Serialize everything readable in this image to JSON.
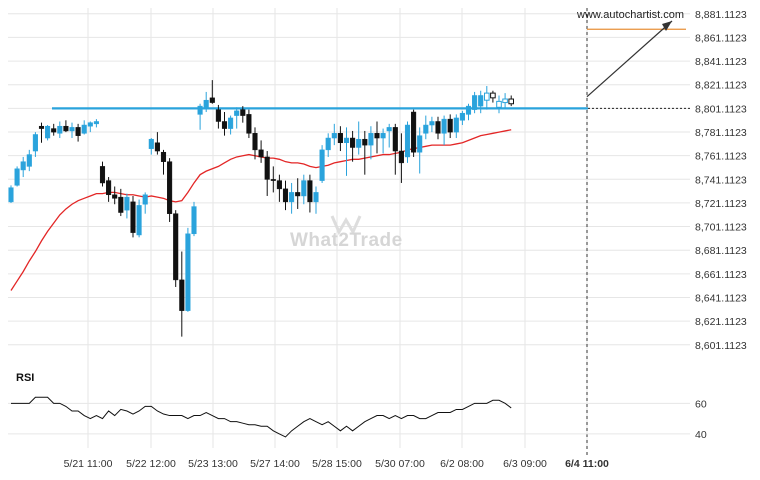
{
  "watermark_text": "What2Trade",
  "source_label": "www.autochartist.com",
  "rsi_label": "RSI",
  "colors": {
    "bull": "#2aa3dc",
    "bear": "#111111",
    "ma": "#e32626",
    "support": "#2aa3dc",
    "grid": "#e6e6e6",
    "projection": "#e8913a",
    "rsi_line": "#111111"
  },
  "chart_data": {
    "type": "candlestick",
    "title": "",
    "y_axis": {
      "ticks": [
        "8,881.1123",
        "8,861.1123",
        "8,841.1123",
        "8,821.1123",
        "8,801.1123",
        "8,781.1123",
        "8,761.1123",
        "8,741.1123",
        "8,721.1123",
        "8,701.1123",
        "8,681.1123",
        "8,661.1123",
        "8,641.1123",
        "8,621.1123",
        "8,601.1123"
      ],
      "range": [
        8595,
        8886
      ],
      "grid": true
    },
    "x_axis": {
      "labels": [
        "5/21 11:00",
        "5/22 12:00",
        "5/23 13:00",
        "5/27 14:00",
        "5/28 15:00",
        "5/30 07:00",
        "6/2 08:00",
        "6/3 09:00",
        "6/4 11:00"
      ]
    },
    "support_level": 8801.1123,
    "breakout_marker": "6/4 11:00",
    "projection": {
      "from_price": 8811,
      "to_price": 8868
    },
    "candles": [
      {
        "o": 8722,
        "h": 8736,
        "l": 8721,
        "c": 8734
      },
      {
        "o": 8736,
        "h": 8752,
        "l": 8735,
        "c": 8750
      },
      {
        "o": 8749,
        "h": 8760,
        "l": 8743,
        "c": 8756
      },
      {
        "o": 8752,
        "h": 8766,
        "l": 8748,
        "c": 8762
      },
      {
        "o": 8765,
        "h": 8781,
        "l": 8760,
        "c": 8779
      },
      {
        "o": 8786,
        "h": 8789,
        "l": 8772,
        "c": 8784
      },
      {
        "o": 8776,
        "h": 8787,
        "l": 8774,
        "c": 8786
      },
      {
        "o": 8784,
        "h": 8788,
        "l": 8778,
        "c": 8781
      },
      {
        "o": 8780,
        "h": 8790,
        "l": 8776,
        "c": 8786
      },
      {
        "o": 8786,
        "h": 8791,
        "l": 8781,
        "c": 8782
      },
      {
        "o": 8782,
        "h": 8789,
        "l": 8776,
        "c": 8785
      },
      {
        "o": 8785,
        "h": 8788,
        "l": 8773,
        "c": 8778
      },
      {
        "o": 8780,
        "h": 8791,
        "l": 8779,
        "c": 8787
      },
      {
        "o": 8786,
        "h": 8790,
        "l": 8781,
        "c": 8789
      },
      {
        "o": 8788,
        "h": 8792,
        "l": 8785,
        "c": 8790
      },
      {
        "o": 8752,
        "h": 8756,
        "l": 8735,
        "c": 8738
      },
      {
        "o": 8740,
        "h": 8743,
        "l": 8722,
        "c": 8728
      },
      {
        "o": 8728,
        "h": 8735,
        "l": 8720,
        "c": 8725
      },
      {
        "o": 8726,
        "h": 8733,
        "l": 8710,
        "c": 8713
      },
      {
        "o": 8715,
        "h": 8729,
        "l": 8708,
        "c": 8726
      },
      {
        "o": 8722,
        "h": 8727,
        "l": 8692,
        "c": 8696
      },
      {
        "o": 8694,
        "h": 8724,
        "l": 8692,
        "c": 8719
      },
      {
        "o": 8720,
        "h": 8730,
        "l": 8712,
        "c": 8728
      },
      {
        "o": 8767,
        "h": 8776,
        "l": 8762,
        "c": 8775
      },
      {
        "o": 8772,
        "h": 8781,
        "l": 8762,
        "c": 8765
      },
      {
        "o": 8764,
        "h": 8766,
        "l": 8745,
        "c": 8756
      },
      {
        "o": 8756,
        "h": 8759,
        "l": 8705,
        "c": 8712
      },
      {
        "o": 8712,
        "h": 8715,
        "l": 8650,
        "c": 8656
      },
      {
        "o": 8656,
        "h": 8680,
        "l": 8608,
        "c": 8630
      },
      {
        "o": 8630,
        "h": 8700,
        "l": 8629,
        "c": 8695
      },
      {
        "o": 8695,
        "h": 8722,
        "l": 8693,
        "c": 8718
      },
      {
        "o": 8796,
        "h": 8805,
        "l": 8783,
        "c": 8803
      },
      {
        "o": 8802,
        "h": 8815,
        "l": 8798,
        "c": 8808
      },
      {
        "o": 8810,
        "h": 8825,
        "l": 8805,
        "c": 8806
      },
      {
        "o": 8800,
        "h": 8804,
        "l": 8784,
        "c": 8790
      },
      {
        "o": 8790,
        "h": 8798,
        "l": 8778,
        "c": 8784
      },
      {
        "o": 8784,
        "h": 8795,
        "l": 8779,
        "c": 8793
      },
      {
        "o": 8795,
        "h": 8802,
        "l": 8784,
        "c": 8799
      },
      {
        "o": 8800,
        "h": 8803,
        "l": 8789,
        "c": 8795
      },
      {
        "o": 8796,
        "h": 8800,
        "l": 8776,
        "c": 8780
      },
      {
        "o": 8780,
        "h": 8785,
        "l": 8758,
        "c": 8766
      },
      {
        "o": 8766,
        "h": 8774,
        "l": 8755,
        "c": 8760
      },
      {
        "o": 8760,
        "h": 8765,
        "l": 8727,
        "c": 8741
      },
      {
        "o": 8741,
        "h": 8752,
        "l": 8730,
        "c": 8740
      },
      {
        "o": 8740,
        "h": 8745,
        "l": 8722,
        "c": 8733
      },
      {
        "o": 8733,
        "h": 8740,
        "l": 8715,
        "c": 8722
      },
      {
        "o": 8722,
        "h": 8738,
        "l": 8712,
        "c": 8730
      },
      {
        "o": 8730,
        "h": 8742,
        "l": 8716,
        "c": 8727
      },
      {
        "o": 8727,
        "h": 8745,
        "l": 8720,
        "c": 8740
      },
      {
        "o": 8740,
        "h": 8745,
        "l": 8713,
        "c": 8722
      },
      {
        "o": 8722,
        "h": 8735,
        "l": 8712,
        "c": 8730
      },
      {
        "o": 8740,
        "h": 8770,
        "l": 8738,
        "c": 8766
      },
      {
        "o": 8766,
        "h": 8780,
        "l": 8760,
        "c": 8776
      },
      {
        "o": 8776,
        "h": 8788,
        "l": 8770,
        "c": 8780
      },
      {
        "o": 8780,
        "h": 8786,
        "l": 8765,
        "c": 8772
      },
      {
        "o": 8772,
        "h": 8785,
        "l": 8744,
        "c": 8776
      },
      {
        "o": 8776,
        "h": 8782,
        "l": 8756,
        "c": 8768
      },
      {
        "o": 8768,
        "h": 8790,
        "l": 8762,
        "c": 8775
      },
      {
        "o": 8775,
        "h": 8782,
        "l": 8745,
        "c": 8770
      },
      {
        "o": 8770,
        "h": 8786,
        "l": 8758,
        "c": 8780
      },
      {
        "o": 8780,
        "h": 8790,
        "l": 8763,
        "c": 8776
      },
      {
        "o": 8776,
        "h": 8784,
        "l": 8763,
        "c": 8780
      },
      {
        "o": 8782,
        "h": 8788,
        "l": 8768,
        "c": 8785
      },
      {
        "o": 8785,
        "h": 8788,
        "l": 8745,
        "c": 8765
      },
      {
        "o": 8765,
        "h": 8780,
        "l": 8738,
        "c": 8755
      },
      {
        "o": 8760,
        "h": 8790,
        "l": 8755,
        "c": 8787
      },
      {
        "o": 8798,
        "h": 8800,
        "l": 8760,
        "c": 8764
      },
      {
        "o": 8764,
        "h": 8785,
        "l": 8746,
        "c": 8778
      },
      {
        "o": 8780,
        "h": 8795,
        "l": 8775,
        "c": 8787
      },
      {
        "o": 8787,
        "h": 8794,
        "l": 8781,
        "c": 8790
      },
      {
        "o": 8790,
        "h": 8794,
        "l": 8775,
        "c": 8780
      },
      {
        "o": 8780,
        "h": 8795,
        "l": 8770,
        "c": 8792
      },
      {
        "o": 8792,
        "h": 8796,
        "l": 8776,
        "c": 8781
      },
      {
        "o": 8781,
        "h": 8796,
        "l": 8776,
        "c": 8793
      },
      {
        "o": 8791,
        "h": 8799,
        "l": 8787,
        "c": 8797
      },
      {
        "o": 8796,
        "h": 8805,
        "l": 8791,
        "c": 8803
      },
      {
        "o": 8800,
        "h": 8815,
        "l": 8797,
        "c": 8812
      },
      {
        "o": 8803,
        "h": 8816,
        "l": 8797,
        "c": 8812
      },
      {
        "o": 8808,
        "h": 8820,
        "l": 8800,
        "c": 8814
      },
      {
        "o": 8814,
        "h": 8816,
        "l": 8806,
        "c": 8810
      },
      {
        "o": 8802,
        "h": 8812,
        "l": 8797,
        "c": 8807
      },
      {
        "o": 8806,
        "h": 8814,
        "l": 8801,
        "c": 8809
      },
      {
        "o": 8809,
        "h": 8812,
        "l": 8803,
        "c": 8805
      }
    ],
    "ma": [
      8647,
      8655,
      8663,
      8672,
      8680,
      8689,
      8697,
      8704,
      8711,
      8716,
      8720,
      8723,
      8725,
      8727,
      8729,
      8729,
      8730,
      8730,
      8729,
      8728,
      8728,
      8727,
      8726,
      8727,
      8726,
      8725,
      8723,
      8722,
      8723,
      8730,
      8738,
      8745,
      8748,
      8750,
      8752,
      8755,
      8758,
      8760,
      8761,
      8762,
      8761,
      8760,
      8759,
      8759,
      8758,
      8756,
      8755,
      8755,
      8754,
      8752,
      8751,
      8752,
      8753,
      8755,
      8756,
      8757,
      8758,
      8758,
      8759,
      8760,
      8761,
      8762,
      8762,
      8763,
      8764,
      8766,
      8767,
      8768,
      8769,
      8770,
      8770,
      8770,
      8770,
      8771,
      8772,
      8774,
      8776,
      8778,
      8779,
      8780,
      8781,
      8782,
      8783
    ],
    "rsi": {
      "ticks": [
        60,
        40
      ],
      "range": [
        36,
        72
      ],
      "values": [
        60,
        60,
        60,
        60,
        64,
        64,
        64,
        60,
        60,
        58,
        55,
        55,
        52,
        50,
        52,
        50,
        55,
        52,
        56,
        55,
        53,
        55,
        58,
        58,
        55,
        53,
        52,
        52,
        52,
        50,
        52,
        52,
        54,
        52,
        50,
        50,
        48,
        48,
        47,
        46,
        46,
        45,
        45,
        42,
        40,
        38,
        42,
        45,
        48,
        50,
        48,
        46,
        48,
        45,
        42,
        45,
        42,
        45,
        48,
        50,
        52,
        52,
        50,
        52,
        50,
        52,
        52,
        50,
        50,
        52,
        54,
        54,
        54,
        56,
        56,
        58,
        60,
        60,
        60,
        62,
        62,
        60,
        57
      ]
    }
  }
}
